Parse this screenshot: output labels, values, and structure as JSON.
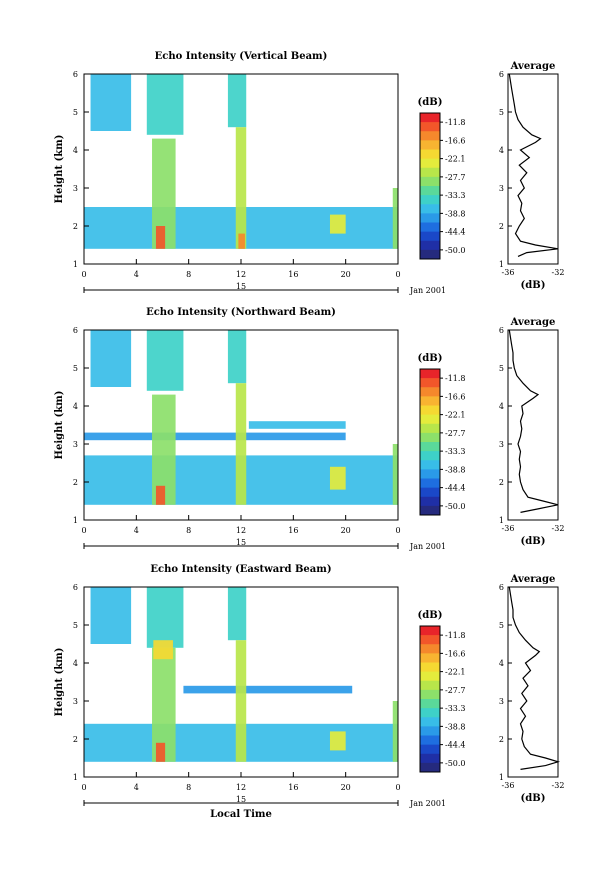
{
  "chart_data": [
    {
      "type": "heatmap",
      "title": "Echo Intensity (Vertical Beam)",
      "ylabel": "Height (km)",
      "xlabel": "",
      "x_ticks": [
        "0",
        "4",
        "8",
        "12",
        "16",
        "20",
        "0"
      ],
      "y_ticks": [
        "1",
        "2",
        "3",
        "4",
        "5",
        "6"
      ],
      "date_day": "15",
      "date_label": "Jan 2001",
      "xlim": [
        0,
        24
      ],
      "ylim": [
        1,
        6
      ],
      "colorbar": {
        "unit": "(dB)",
        "labels": [
          "-11.8",
          "-16.6",
          "-22.1",
          "-27.7",
          "-33.3",
          "-38.8",
          "-44.4",
          "-50.0"
        ],
        "colors": [
          "#e8242a",
          "#f2562a",
          "#f5882c",
          "#f8b431",
          "#f5d932",
          "#e4ec3c",
          "#b8e64a",
          "#8ce06a",
          "#5ad99a",
          "#3ed1c8",
          "#38bde8",
          "#2a9ae8",
          "#1e6ee0",
          "#1a48c8",
          "#1f2fa6",
          "#252a7e"
        ]
      },
      "echo_regions": [
        {
          "hours": [
            0.5,
            3.6
          ],
          "height": [
            4.5,
            6.0
          ],
          "level": 10
        },
        {
          "hours": [
            4.8,
            7.6
          ],
          "height": [
            4.4,
            6.0
          ],
          "level": 9
        },
        {
          "hours": [
            11.0,
            12.4
          ],
          "height": [
            4.6,
            6.0
          ],
          "level": 9
        },
        {
          "hours": [
            0.0,
            24.0
          ],
          "height": [
            1.4,
            2.5
          ],
          "level": 10
        },
        {
          "hours": [
            5.2,
            7.0
          ],
          "height": [
            1.4,
            4.3
          ],
          "level": 7
        },
        {
          "hours": [
            11.6,
            12.4
          ],
          "height": [
            1.4,
            4.6
          ],
          "level": 6
        },
        {
          "hours": [
            5.5,
            6.2
          ],
          "height": [
            1.4,
            2.0
          ],
          "level": 1
        },
        {
          "hours": [
            11.8,
            12.3
          ],
          "height": [
            1.4,
            1.8
          ],
          "level": 2
        },
        {
          "hours": [
            18.8,
            20.0
          ],
          "height": [
            1.8,
            2.3
          ],
          "level": 5
        },
        {
          "hours": [
            23.6,
            24.0
          ],
          "height": [
            1.4,
            3.0
          ],
          "level": 7
        }
      ],
      "average_profile": {
        "title": "Average",
        "xlabel": "(dB)",
        "x_ticks": [
          "-36",
          "-32"
        ],
        "xlim": [
          -36,
          -32
        ],
        "height": [
          1.2,
          1.3,
          1.4,
          1.5,
          1.6,
          1.8,
          2.0,
          2.2,
          2.4,
          2.6,
          2.8,
          3.0,
          3.2,
          3.4,
          3.6,
          3.8,
          4.0,
          4.2,
          4.3,
          4.4,
          4.6,
          4.8,
          5.0,
          5.2,
          5.4,
          5.6,
          5.8,
          6.0
        ],
        "values": [
          -35.2,
          -34.5,
          -32.0,
          -33.8,
          -35.0,
          -35.4,
          -35.1,
          -34.7,
          -35.0,
          -34.9,
          -35.2,
          -34.7,
          -35.0,
          -34.5,
          -35.1,
          -34.3,
          -35.0,
          -33.8,
          -33.4,
          -34.1,
          -34.8,
          -35.2,
          -35.4,
          -35.5,
          -35.6,
          -35.7,
          -35.8,
          -35.9
        ]
      }
    },
    {
      "type": "heatmap",
      "title": "Echo Intensity (Northward Beam)",
      "ylabel": "Height (km)",
      "xlabel": "",
      "x_ticks": [
        "0",
        "4",
        "8",
        "12",
        "16",
        "20",
        "0"
      ],
      "y_ticks": [
        "1",
        "2",
        "3",
        "4",
        "5",
        "6"
      ],
      "date_day": "15",
      "date_label": "Jan 2001",
      "xlim": [
        0,
        24
      ],
      "ylim": [
        1,
        6
      ],
      "colorbar": {
        "unit": "(dB)",
        "labels": [
          "-11.8",
          "-16.6",
          "-22.1",
          "-27.7",
          "-33.3",
          "-38.8",
          "-44.4",
          "-50.0"
        ],
        "colors": [
          "#e8242a",
          "#f2562a",
          "#f5882c",
          "#f8b431",
          "#f5d932",
          "#e4ec3c",
          "#b8e64a",
          "#8ce06a",
          "#5ad99a",
          "#3ed1c8",
          "#38bde8",
          "#2a9ae8",
          "#1e6ee0",
          "#1a48c8",
          "#1f2fa6",
          "#252a7e"
        ]
      },
      "echo_regions": [
        {
          "hours": [
            0.5,
            3.6
          ],
          "height": [
            4.5,
            6.0
          ],
          "level": 10
        },
        {
          "hours": [
            4.8,
            7.6
          ],
          "height": [
            4.4,
            6.0
          ],
          "level": 9
        },
        {
          "hours": [
            11.0,
            12.4
          ],
          "height": [
            4.6,
            6.0
          ],
          "level": 9
        },
        {
          "hours": [
            0.0,
            20.0
          ],
          "height": [
            3.1,
            3.3
          ],
          "level": 11
        },
        {
          "hours": [
            12.6,
            20.0
          ],
          "height": [
            3.4,
            3.6
          ],
          "level": 10
        },
        {
          "hours": [
            0.0,
            24.0
          ],
          "height": [
            1.4,
            2.7
          ],
          "level": 10
        },
        {
          "hours": [
            5.2,
            7.0
          ],
          "height": [
            1.4,
            4.3
          ],
          "level": 7
        },
        {
          "hours": [
            11.6,
            12.4
          ],
          "height": [
            1.4,
            4.6
          ],
          "level": 6
        },
        {
          "hours": [
            5.5,
            6.2
          ],
          "height": [
            1.4,
            1.9
          ],
          "level": 1
        },
        {
          "hours": [
            18.8,
            20.0
          ],
          "height": [
            1.8,
            2.4
          ],
          "level": 5
        },
        {
          "hours": [
            23.6,
            24.0
          ],
          "height": [
            1.4,
            3.0
          ],
          "level": 7
        }
      ],
      "average_profile": {
        "title": "Average",
        "xlabel": "(dB)",
        "x_ticks": [
          "-36",
          "-32"
        ],
        "xlim": [
          -36,
          -32
        ],
        "height": [
          1.2,
          1.3,
          1.4,
          1.5,
          1.6,
          1.8,
          2.0,
          2.2,
          2.4,
          2.6,
          2.8,
          3.0,
          3.2,
          3.4,
          3.6,
          3.8,
          4.0,
          4.2,
          4.3,
          4.4,
          4.6,
          4.8,
          5.0,
          5.2,
          5.4,
          5.6,
          5.8,
          6.0
        ],
        "values": [
          -35.0,
          -33.5,
          -32.0,
          -33.2,
          -34.4,
          -34.8,
          -35.0,
          -35.1,
          -35.0,
          -35.1,
          -35.0,
          -35.2,
          -35.0,
          -34.9,
          -35.0,
          -34.8,
          -34.9,
          -34.0,
          -33.6,
          -34.2,
          -34.8,
          -35.3,
          -35.5,
          -35.6,
          -35.6,
          -35.7,
          -35.8,
          -35.9
        ]
      }
    },
    {
      "type": "heatmap",
      "title": "Echo Intensity (Eastward Beam)",
      "ylabel": "Height (km)",
      "xlabel": "Local Time",
      "x_ticks": [
        "0",
        "4",
        "8",
        "12",
        "16",
        "20",
        "0"
      ],
      "y_ticks": [
        "1",
        "2",
        "3",
        "4",
        "5",
        "6"
      ],
      "date_day": "15",
      "date_label": "Jan 2001",
      "xlim": [
        0,
        24
      ],
      "ylim": [
        1,
        6
      ],
      "colorbar": {
        "unit": "(dB)",
        "labels": [
          "-11.8",
          "-16.6",
          "-22.1",
          "-27.7",
          "-33.3",
          "-38.8",
          "-44.4",
          "-50.0"
        ],
        "colors": [
          "#e8242a",
          "#f2562a",
          "#f5882c",
          "#f8b431",
          "#f5d932",
          "#e4ec3c",
          "#b8e64a",
          "#8ce06a",
          "#5ad99a",
          "#3ed1c8",
          "#38bde8",
          "#2a9ae8",
          "#1e6ee0",
          "#1a48c8",
          "#1f2fa6",
          "#252a7e"
        ]
      },
      "echo_regions": [
        {
          "hours": [
            0.5,
            3.6
          ],
          "height": [
            4.5,
            6.0
          ],
          "level": 10
        },
        {
          "hours": [
            4.8,
            7.6
          ],
          "height": [
            4.4,
            6.0
          ],
          "level": 9
        },
        {
          "hours": [
            11.0,
            12.4
          ],
          "height": [
            4.6,
            6.0
          ],
          "level": 9
        },
        {
          "hours": [
            7.6,
            20.5
          ],
          "height": [
            3.2,
            3.4
          ],
          "level": 11
        },
        {
          "hours": [
            0.0,
            24.0
          ],
          "height": [
            1.4,
            2.4
          ],
          "level": 10
        },
        {
          "hours": [
            5.2,
            7.0
          ],
          "height": [
            1.4,
            4.4
          ],
          "level": 7
        },
        {
          "hours": [
            5.3,
            6.8
          ],
          "height": [
            4.1,
            4.6
          ],
          "level": 4
        },
        {
          "hours": [
            11.6,
            12.4
          ],
          "height": [
            1.4,
            4.6
          ],
          "level": 6
        },
        {
          "hours": [
            5.5,
            6.2
          ],
          "height": [
            1.4,
            1.9
          ],
          "level": 1
        },
        {
          "hours": [
            18.8,
            20.0
          ],
          "height": [
            1.7,
            2.2
          ],
          "level": 5
        },
        {
          "hours": [
            23.6,
            24.0
          ],
          "height": [
            1.4,
            3.0
          ],
          "level": 7
        }
      ],
      "average_profile": {
        "title": "Average",
        "xlabel": "(dB)",
        "x_ticks": [
          "-36",
          "-32"
        ],
        "xlim": [
          -36,
          -32
        ],
        "height": [
          1.2,
          1.3,
          1.4,
          1.5,
          1.6,
          1.8,
          2.0,
          2.2,
          2.4,
          2.6,
          2.8,
          3.0,
          3.2,
          3.4,
          3.6,
          3.8,
          4.0,
          4.2,
          4.3,
          4.4,
          4.6,
          4.8,
          5.0,
          5.2,
          5.4,
          5.6,
          5.8,
          6.0
        ],
        "values": [
          -35.0,
          -33.0,
          -32.0,
          -33.0,
          -34.2,
          -34.7,
          -34.9,
          -34.8,
          -35.0,
          -34.6,
          -35.0,
          -34.5,
          -34.9,
          -34.4,
          -34.8,
          -34.2,
          -34.6,
          -33.8,
          -33.5,
          -34.0,
          -34.6,
          -35.1,
          -35.4,
          -35.6,
          -35.6,
          -35.7,
          -35.8,
          -35.9
        ]
      }
    }
  ]
}
